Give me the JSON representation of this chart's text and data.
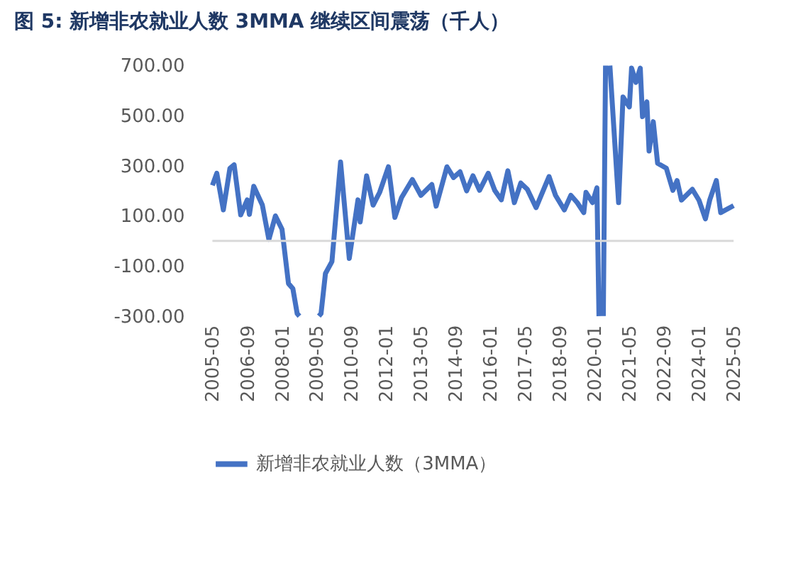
{
  "chart_data": {
    "type": "line",
    "title": "图 5:  新增非农就业人数 3MMA 继续区间震荡（千人）",
    "x": [
      "2005-05",
      "2005-07",
      "2005-10",
      "2006-01",
      "2006-03",
      "2006-06",
      "2006-09",
      "2006-10",
      "2006-12",
      "2007-04",
      "2007-07",
      "2007-10",
      "2008-01",
      "2008-04",
      "2008-06",
      "2008-08",
      "2008-09",
      "2008-10",
      "2009-06",
      "2009-07",
      "2009-09",
      "2009-12",
      "2010-04",
      "2010-08",
      "2010-12",
      "2011-01",
      "2011-04",
      "2011-07",
      "2011-10",
      "2012-02",
      "2012-05",
      "2012-08",
      "2013-01",
      "2013-05",
      "2013-10",
      "2013-12",
      "2014-05",
      "2014-08",
      "2014-11",
      "2015-02",
      "2015-05",
      "2015-08",
      "2015-12",
      "2016-03",
      "2016-06",
      "2016-09",
      "2016-12",
      "2017-03",
      "2017-06",
      "2017-10",
      "2018-04",
      "2018-07",
      "2018-11",
      "2019-02",
      "2019-05",
      "2019-08",
      "2019-09",
      "2019-12",
      "2020-02",
      "2020-03",
      "2020-04",
      "2020-05",
      "2020-06",
      "2020-07",
      "2020-08",
      "2020-12",
      "2021-02",
      "2021-05",
      "2021-06",
      "2021-08",
      "2021-10",
      "2021-11",
      "2022-01",
      "2022-02",
      "2022-04",
      "2022-06",
      "2022-10",
      "2023-01",
      "2023-03",
      "2023-05",
      "2023-10",
      "2024-01",
      "2024-04",
      "2024-06",
      "2024-09",
      "2024-11",
      "2025-05"
    ],
    "series": [
      {
        "name": "新增非农就业人数（3MMA）",
        "color": "#4472c4",
        "values": [
          222,
          270,
          124,
          290,
          304,
          104,
          164,
          106,
          218,
          143,
          6,
          100,
          47,
          -170,
          -190,
          -290,
          -300,
          null,
          -300,
          -290,
          -130,
          -82,
          315,
          -70,
          164,
          76,
          260,
          143,
          194,
          296,
          94,
          172,
          245,
          182,
          225,
          139,
          296,
          253,
          276,
          200,
          260,
          202,
          270,
          202,
          164,
          280,
          153,
          231,
          206,
          133,
          257,
          182,
          124,
          182,
          153,
          113,
          194,
          153,
          212,
          -300,
          null,
          -300,
          700,
          null,
          700,
          153,
          575,
          535,
          690,
          633,
          690,
          496,
          555,
          359,
          476,
          310,
          290,
          202,
          241,
          163,
          206,
          163,
          88,
          164,
          241,
          113,
          141
        ]
      }
    ],
    "xlim": [
      "2005-05",
      "2025-05"
    ],
    "xticks": [
      "2005-05",
      "2006-09",
      "2008-01",
      "2009-05",
      "2010-09",
      "2012-01",
      "2013-05",
      "2014-09",
      "2016-01",
      "2017-05",
      "2018-09",
      "2020-01",
      "2021-05",
      "2022-09",
      "2024-01",
      "2025-05"
    ],
    "ylim": [
      -300,
      700
    ],
    "yticks": [
      {
        "value": -300,
        "label": "-300.00"
      },
      {
        "value": -100,
        "label": "-100.00"
      },
      {
        "value": 100,
        "label": "100.00"
      },
      {
        "value": 300,
        "label": "300.00"
      },
      {
        "value": 500,
        "label": "500.00"
      },
      {
        "value": 700,
        "label": "700.00"
      }
    ],
    "ref_lines": [
      {
        "axis": "y",
        "value": 0,
        "color": "#d9d9d9"
      }
    ],
    "grid": false,
    "legend": "bottom",
    "line_style": "solid",
    "marker": "none"
  }
}
